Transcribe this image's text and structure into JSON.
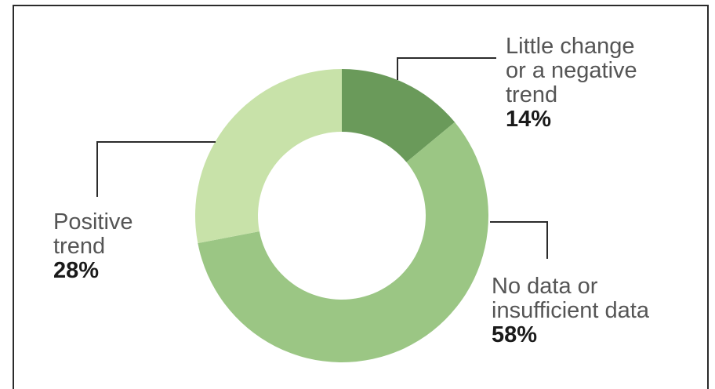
{
  "chart_data": {
    "type": "pie",
    "variant": "donut",
    "title": "",
    "slices": [
      {
        "label": "Little change\nor a negative\ntrend",
        "value": 14,
        "display": "14%",
        "color": "#6a9a5a"
      },
      {
        "label": "No data or\ninsufficient data",
        "value": 58,
        "display": "58%",
        "color": "#9bc684"
      },
      {
        "label": "Positive\ntrend",
        "value": 28,
        "display": "28%",
        "color": "#c8e2a9"
      }
    ],
    "colors": {
      "leader_line": "#2b2b2b",
      "frame": "#2b2b2b",
      "label_text": "#555555",
      "value_text": "#1a1a1a"
    }
  }
}
